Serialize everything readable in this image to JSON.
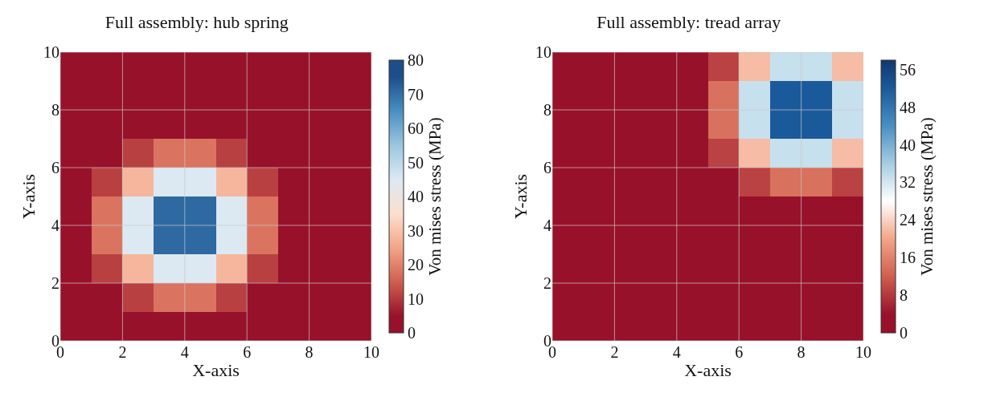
{
  "chart_data": [
    {
      "type": "heatmap",
      "title": "Full assembly: hub spring",
      "xlabel": "X-axis",
      "ylabel": "Y-axis",
      "clabel": "Von mises stress (MPa)",
      "x": [
        0.5,
        1.5,
        2.5,
        3.5,
        4.5,
        5.5,
        6.5,
        7.5,
        8.5,
        9.5
      ],
      "y": [
        9.5,
        8.5,
        7.5,
        6.5,
        5.5,
        4.5,
        3.5,
        2.5,
        1.5,
        0.5
      ],
      "cells": [
        [
          0,
          0,
          0,
          0,
          0,
          0,
          0,
          0,
          0,
          0
        ],
        [
          0,
          0,
          0,
          1,
          1,
          0,
          0,
          0,
          0,
          0
        ],
        [
          0,
          1,
          3,
          4,
          4,
          3,
          1,
          0,
          0,
          0
        ],
        [
          1,
          4,
          11,
          18,
          18,
          11,
          4,
          1,
          0,
          0
        ],
        [
          3,
          11,
          28,
          45,
          45,
          28,
          11,
          3,
          0,
          0
        ],
        [
          4,
          18,
          45,
          71,
          71,
          45,
          18,
          4,
          1,
          0
        ],
        [
          4,
          18,
          45,
          71,
          71,
          45,
          18,
          4,
          1,
          0
        ],
        [
          3,
          11,
          28,
          45,
          45,
          28,
          11,
          3,
          0,
          0
        ],
        [
          1,
          4,
          11,
          18,
          18,
          11,
          4,
          1,
          0,
          0
        ],
        [
          0,
          1,
          3,
          4,
          4,
          3,
          1,
          0,
          0,
          0
        ]
      ],
      "colors": [
        "#98112b",
        "#cf5f4f",
        "#f3a587",
        "#fcdfcf",
        "#dde9f2",
        "#9cc6e0",
        "#4a8fc2",
        "#1b4f8c"
      ],
      "clim": [
        0,
        80
      ],
      "cticks": [
        0,
        10,
        20,
        30,
        40,
        50,
        60,
        70,
        80
      ],
      "xlim": [
        0,
        10
      ],
      "ylim": [
        0,
        10
      ],
      "xticks": [
        0,
        2,
        4,
        6,
        8,
        10
      ],
      "yticks": [
        0,
        2,
        4,
        6,
        8,
        10
      ],
      "grid": true
    },
    {
      "type": "heatmap",
      "title": "Full assembly: tread array",
      "xlabel": "X-axis",
      "ylabel": "Y-axis",
      "clabel": "Von mises stress (MPa)",
      "x": [
        0.5,
        1.5,
        2.5,
        3.5,
        4.5,
        5.5,
        6.5,
        7.5,
        8.5,
        9.5
      ],
      "y": [
        9.5,
        8.5,
        7.5,
        6.5,
        5.5,
        4.5,
        3.5,
        2.5,
        1.5,
        0.5
      ],
      "cells": [
        [
          0,
          0,
          0,
          0,
          2,
          9,
          22,
          33,
          33,
          22
        ],
        [
          0,
          0,
          0,
          1,
          4,
          14,
          33,
          52,
          52,
          33
        ],
        [
          0,
          0,
          0,
          1,
          4,
          14,
          33,
          52,
          52,
          33
        ],
        [
          0,
          0,
          0,
          0,
          2,
          9,
          22,
          33,
          33,
          22
        ],
        [
          0,
          0,
          0,
          0,
          1,
          4,
          9,
          14,
          14,
          9
        ],
        [
          0,
          0,
          0,
          0,
          0,
          1,
          2,
          4,
          4,
          2
        ],
        [
          0,
          0,
          0,
          0,
          0,
          0,
          1,
          1,
          0,
          0
        ],
        [
          0,
          0,
          0,
          0,
          0,
          0,
          0,
          0,
          0,
          0
        ],
        [
          0,
          0,
          0,
          0,
          0,
          0,
          0,
          0,
          0,
          0
        ],
        [
          0,
          0,
          0,
          0,
          0,
          0,
          0,
          0,
          0,
          0
        ]
      ],
      "colors": [
        "#98112b",
        "#cf5f4f",
        "#f3a587",
        "#ffffff",
        "#a6cde3",
        "#4a8fc2",
        "#1b5a9a",
        "#12386e"
      ],
      "clim": [
        0,
        58
      ],
      "cticks": [
        0,
        8,
        16,
        24,
        32,
        40,
        48,
        56
      ],
      "xlim": [
        0,
        10
      ],
      "ylim": [
        0,
        10
      ],
      "xticks": [
        0,
        2,
        4,
        6,
        8,
        10
      ],
      "yticks": [
        0,
        2,
        4,
        6,
        8,
        10
      ],
      "grid": true
    }
  ]
}
